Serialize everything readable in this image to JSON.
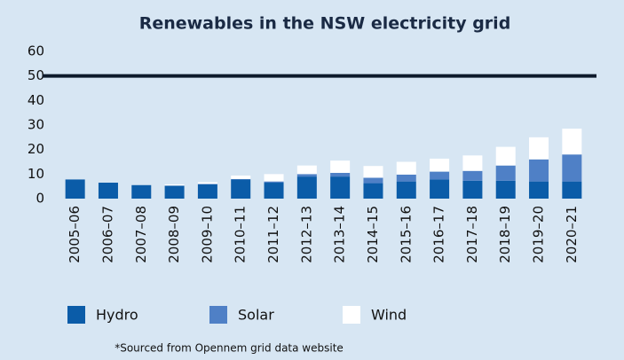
{
  "chart_data": {
    "type": "stacked_bar",
    "title": "Renewables in the NSW electricity grid",
    "categories": [
      "2005–06",
      "2006–07",
      "2007–08",
      "2008–09",
      "2009–10",
      "2010–11",
      "2011–12",
      "2012–13",
      "2013–14",
      "2014–15",
      "2015–16",
      "2016–17",
      "2017–18",
      "2018–19",
      "2019–20",
      "2020–21"
    ],
    "series": [
      {
        "name": "Hydro",
        "color": "#0b5ca8",
        "values": [
          7.8,
          6.5,
          5.5,
          5.3,
          5.8,
          7.8,
          6.5,
          9,
          9,
          6.3,
          7,
          7.8,
          7.3,
          7.3,
          7,
          7
        ]
      },
      {
        "name": "Solar",
        "color": "#4f80c6",
        "values": [
          0,
          0,
          0,
          0,
          0.2,
          0.2,
          0.5,
          1,
          1.5,
          2.2,
          2.8,
          3.2,
          4,
          6.2,
          9,
          11
        ]
      },
      {
        "name": "Wind",
        "color": "#ffffff",
        "values": [
          0,
          0,
          0,
          0.5,
          0.7,
          1.4,
          3,
          3.5,
          5,
          4.8,
          5.2,
          5.3,
          6.3,
          7.6,
          9,
          10.5
        ]
      }
    ],
    "target_line": 50,
    "ylim": [
      0,
      60
    ],
    "yticks": [
      0,
      10,
      20,
      30,
      40,
      50,
      60
    ],
    "grid": false,
    "footnote": "*Sourced from Opennem grid data website"
  }
}
